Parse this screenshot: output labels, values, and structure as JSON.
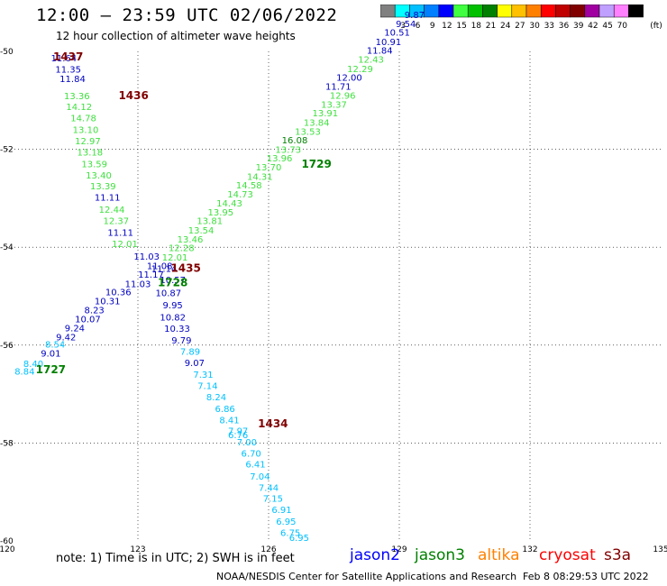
{
  "header": {
    "title": "12:00 — 23:59 UTC 02/06/2022",
    "subtitle": "12 hour collection of altimeter wave heights"
  },
  "legend": {
    "unit": "(ft)",
    "bins": [
      {
        "color": "#808080",
        "label": ""
      },
      {
        "color": "#00ffff",
        "label": "3"
      },
      {
        "color": "#00c0ff",
        "label": "6"
      },
      {
        "color": "#0080ff",
        "label": "9"
      },
      {
        "color": "#0000ff",
        "label": "12"
      },
      {
        "color": "#40ff40",
        "label": "15"
      },
      {
        "color": "#00c000",
        "label": "18"
      },
      {
        "color": "#008000",
        "label": "21"
      },
      {
        "color": "#ffff00",
        "label": "24"
      },
      {
        "color": "#ffc000",
        "label": "27"
      },
      {
        "color": "#ff8000",
        "label": "30"
      },
      {
        "color": "#ff0000",
        "label": "33"
      },
      {
        "color": "#c00000",
        "label": "36"
      },
      {
        "color": "#800000",
        "label": "39"
      },
      {
        "color": "#a000a0",
        "label": "42"
      },
      {
        "color": "#c0a0ff",
        "label": "45"
      },
      {
        "color": "#ff80ff",
        "label": "70"
      },
      {
        "color": "#000000",
        "label": ""
      }
    ]
  },
  "footer": {
    "note": "note:  1) Time is in UTC;  2) SWH is in feet",
    "credit": "NOAA/NESDIS Center for Satellite Applications and Research",
    "generated": "Feb  8 08:29:53 UTC 2022",
    "satellites": [
      {
        "name": "jason2",
        "color": "#0000ff"
      },
      {
        "name": "jason3",
        "color": "#008000"
      },
      {
        "name": "altika",
        "color": "#ff8000"
      },
      {
        "name": "cryosat",
        "color": "#ff0000"
      },
      {
        "name": "s3a",
        "color": "#800000"
      }
    ]
  },
  "chart_data": {
    "type": "scatter",
    "xlim": [
      120,
      135
    ],
    "ylim": [
      -60,
      -50
    ],
    "x_ticks": [
      120,
      123,
      126,
      129,
      132,
      135
    ],
    "y_ticks": [
      -50,
      -52,
      -54,
      -56,
      -58,
      -60
    ],
    "grid": true,
    "colors": {
      "light_blue": "#00a0ff",
      "navy": "#0000c0",
      "light_green": "#40e040",
      "dark_green": "#008000",
      "maroon": "#800000",
      "cyan": "#00c0ff"
    },
    "track_labels": [
      {
        "text": "1437",
        "x": 121.4,
        "y": -50.18,
        "color": "#800000"
      },
      {
        "text": "1436",
        "x": 122.9,
        "y": -50.98,
        "color": "#800000"
      },
      {
        "text": "1435",
        "x": 124.1,
        "y": -54.5,
        "color": "#800000"
      },
      {
        "text": "1434",
        "x": 126.1,
        "y": -57.68,
        "color": "#800000"
      },
      {
        "text": "1729",
        "x": 127.1,
        "y": -52.38,
        "color": "#008000"
      },
      {
        "text": "1728",
        "x": 123.8,
        "y": -54.8,
        "color": "#008000"
      },
      {
        "text": "1727",
        "x": 121.0,
        "y": -56.57,
        "color": "#008000"
      }
    ],
    "series": [
      {
        "name": "track 1437/1436/1435/1434 (descending)",
        "points": [
          {
            "x": 121.3,
            "y": -50.2,
            "v": "11.64",
            "c": "navy"
          },
          {
            "x": 121.4,
            "y": -50.43,
            "v": "11.35",
            "c": "navy"
          },
          {
            "x": 121.5,
            "y": -50.63,
            "v": "11.84",
            "c": "navy"
          },
          {
            "x": 121.6,
            "y": -50.98,
            "v": "13.36",
            "c": "light_green"
          },
          {
            "x": 121.65,
            "y": -51.2,
            "v": "14.12",
            "c": "light_green"
          },
          {
            "x": 121.75,
            "y": -51.43,
            "v": "14.78",
            "c": "light_green"
          },
          {
            "x": 121.8,
            "y": -51.67,
            "v": "13.10",
            "c": "light_green"
          },
          {
            "x": 121.85,
            "y": -51.9,
            "v": "12.97",
            "c": "light_green"
          },
          {
            "x": 121.9,
            "y": -52.13,
            "v": "13.18",
            "c": "light_green"
          },
          {
            "x": 122.0,
            "y": -52.37,
            "v": "13.59",
            "c": "light_green"
          },
          {
            "x": 122.1,
            "y": -52.6,
            "v": "13.40",
            "c": "light_green"
          },
          {
            "x": 122.2,
            "y": -52.82,
            "v": "13.39",
            "c": "light_green"
          },
          {
            "x": 122.3,
            "y": -53.05,
            "v": "11.11",
            "c": "navy"
          },
          {
            "x": 122.4,
            "y": -53.3,
            "v": "12.44",
            "c": "light_green"
          },
          {
            "x": 122.5,
            "y": -53.53,
            "v": "12.37",
            "c": "light_green"
          },
          {
            "x": 122.6,
            "y": -53.77,
            "v": "11.11",
            "c": "navy"
          },
          {
            "x": 122.7,
            "y": -54.0,
            "v": "12.01",
            "c": "light_green"
          },
          {
            "x": 123.2,
            "y": -54.25,
            "v": "11.03",
            "c": "navy"
          },
          {
            "x": 123.6,
            "y": -54.5,
            "v": "11.14",
            "c": "navy"
          },
          {
            "x": 123.8,
            "y": -54.73,
            "v": "10.57",
            "c": "navy"
          },
          {
            "x": 123.7,
            "y": -55.0,
            "v": "10.87",
            "c": "navy"
          },
          {
            "x": 123.8,
            "y": -55.25,
            "v": "9.95",
            "c": "navy"
          },
          {
            "x": 123.8,
            "y": -55.5,
            "v": "10.82",
            "c": "navy"
          },
          {
            "x": 123.9,
            "y": -55.73,
            "v": "10.33",
            "c": "navy"
          },
          {
            "x": 124.0,
            "y": -55.97,
            "v": "9.79",
            "c": "navy"
          },
          {
            "x": 124.2,
            "y": -56.2,
            "v": "7.89",
            "c": "cyan"
          },
          {
            "x": 124.3,
            "y": -56.43,
            "v": "9.07",
            "c": "navy"
          },
          {
            "x": 124.5,
            "y": -56.67,
            "v": "7.31",
            "c": "cyan"
          },
          {
            "x": 124.6,
            "y": -56.9,
            "v": "7.14",
            "c": "cyan"
          },
          {
            "x": 124.8,
            "y": -57.13,
            "v": "8.24",
            "c": "cyan"
          },
          {
            "x": 125.0,
            "y": -57.37,
            "v": "6.86",
            "c": "cyan"
          },
          {
            "x": 125.1,
            "y": -57.6,
            "v": "8.41",
            "c": "cyan"
          },
          {
            "x": 125.3,
            "y": -57.82,
            "v": "7.97",
            "c": "cyan"
          },
          {
            "x": 125.3,
            "y": -57.9,
            "v": "6.76",
            "c": "cyan"
          },
          {
            "x": 125.5,
            "y": -58.05,
            "v": "7.00",
            "c": "cyan"
          },
          {
            "x": 125.6,
            "y": -58.28,
            "v": "6.70",
            "c": "cyan"
          },
          {
            "x": 125.7,
            "y": -58.5,
            "v": "6.41",
            "c": "cyan"
          },
          {
            "x": 125.8,
            "y": -58.75,
            "v": "7.04",
            "c": "cyan"
          },
          {
            "x": 126.0,
            "y": -58.98,
            "v": "7.44",
            "c": "cyan"
          },
          {
            "x": 126.1,
            "y": -59.2,
            "v": "7.15",
            "c": "cyan"
          },
          {
            "x": 126.3,
            "y": -59.43,
            "v": "6.91",
            "c": "cyan"
          },
          {
            "x": 126.4,
            "y": -59.67,
            "v": "6.95",
            "c": "cyan"
          },
          {
            "x": 126.5,
            "y": -59.9,
            "v": "6.75",
            "c": "cyan"
          },
          {
            "x": 126.7,
            "y": -60.0,
            "v": "6.95",
            "c": "cyan"
          }
        ]
      },
      {
        "name": "track 1727/1728/1729 (ascending)",
        "points": [
          {
            "x": 120.4,
            "y": -56.6,
            "v": "8.84",
            "c": "cyan"
          },
          {
            "x": 120.6,
            "y": -56.45,
            "v": "8.40",
            "c": "cyan"
          },
          {
            "x": 121.0,
            "y": -56.23,
            "v": "9.01",
            "c": "navy"
          },
          {
            "x": 121.1,
            "y": -56.05,
            "v": "8.54",
            "c": "cyan"
          },
          {
            "x": 121.35,
            "y": -55.9,
            "v": "9.42",
            "c": "navy"
          },
          {
            "x": 121.55,
            "y": -55.72,
            "v": "9.24",
            "c": "navy"
          },
          {
            "x": 121.85,
            "y": -55.53,
            "v": "10.07",
            "c": "navy"
          },
          {
            "x": 122.0,
            "y": -55.35,
            "v": "8.23",
            "c": "navy"
          },
          {
            "x": 122.3,
            "y": -55.17,
            "v": "10.31",
            "c": "navy"
          },
          {
            "x": 122.55,
            "y": -54.98,
            "v": "10.36",
            "c": "navy"
          },
          {
            "x": 123.0,
            "y": -54.82,
            "v": "11.03",
            "c": "navy"
          },
          {
            "x": 123.3,
            "y": -54.62,
            "v": "11.17",
            "c": "navy"
          },
          {
            "x": 123.5,
            "y": -54.45,
            "v": "11.08",
            "c": "navy"
          },
          {
            "x": 123.85,
            "y": -54.27,
            "v": "12.01",
            "c": "light_green"
          },
          {
            "x": 124.0,
            "y": -54.08,
            "v": "12.28",
            "c": "light_green"
          },
          {
            "x": 124.2,
            "y": -53.9,
            "v": "13.46",
            "c": "light_green"
          },
          {
            "x": 124.45,
            "y": -53.72,
            "v": "13.54",
            "c": "light_green"
          },
          {
            "x": 124.65,
            "y": -53.53,
            "v": "13.81",
            "c": "light_green"
          },
          {
            "x": 124.9,
            "y": -53.35,
            "v": "13.95",
            "c": "light_green"
          },
          {
            "x": 125.1,
            "y": -53.17,
            "v": "14.43",
            "c": "light_green"
          },
          {
            "x": 125.35,
            "y": -52.98,
            "v": "14.73",
            "c": "light_green"
          },
          {
            "x": 125.55,
            "y": -52.8,
            "v": "14.58",
            "c": "light_green"
          },
          {
            "x": 125.8,
            "y": -52.62,
            "v": "14.31",
            "c": "light_green"
          },
          {
            "x": 126.0,
            "y": -52.43,
            "v": "13.70",
            "c": "light_green"
          },
          {
            "x": 126.25,
            "y": -52.25,
            "v": "13.96",
            "c": "light_green"
          },
          {
            "x": 126.45,
            "y": -52.07,
            "v": "13.73",
            "c": "light_green"
          },
          {
            "x": 126.6,
            "y": -51.88,
            "v": "16.08",
            "c": "dark_green"
          },
          {
            "x": 126.9,
            "y": -51.7,
            "v": "13.53",
            "c": "light_green"
          },
          {
            "x": 127.1,
            "y": -51.52,
            "v": "13.84",
            "c": "light_green"
          },
          {
            "x": 127.3,
            "y": -51.33,
            "v": "13.91",
            "c": "light_green"
          },
          {
            "x": 127.5,
            "y": -51.15,
            "v": "13.37",
            "c": "light_green"
          },
          {
            "x": 127.7,
            "y": -50.97,
            "v": "12.96",
            "c": "light_green"
          },
          {
            "x": 127.6,
            "y": -50.78,
            "v": "11.71",
            "c": "navy"
          },
          {
            "x": 127.85,
            "y": -50.6,
            "v": "12.00",
            "c": "navy"
          },
          {
            "x": 128.1,
            "y": -50.42,
            "v": "12.29",
            "c": "light_green"
          },
          {
            "x": 128.35,
            "y": -50.23,
            "v": "12.43",
            "c": "light_green"
          },
          {
            "x": 128.55,
            "y": -50.05,
            "v": "11.84",
            "c": "navy"
          },
          {
            "x": 128.75,
            "y": -49.87,
            "v": "10.91",
            "c": "navy"
          },
          {
            "x": 128.95,
            "y": -49.68,
            "v": "10.51",
            "c": "navy"
          },
          {
            "x": 129.15,
            "y": -49.5,
            "v": "9.54",
            "c": "navy"
          },
          {
            "x": 129.35,
            "y": -49.32,
            "v": "9.87",
            "c": "navy"
          }
        ]
      }
    ]
  }
}
